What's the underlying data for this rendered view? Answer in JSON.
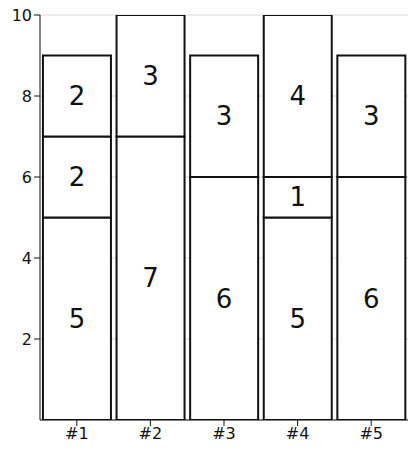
{
  "chart_data": {
    "type": "bar",
    "stacked": true,
    "data_labels": true,
    "grid": true,
    "categories": [
      "#1",
      "#2",
      "#3",
      "#4",
      "#5"
    ],
    "series": [
      {
        "color": "#ffffff",
        "values": [
          5,
          7,
          6,
          5,
          6
        ]
      },
      {
        "color": "#ffffff",
        "values": [
          2,
          3,
          3,
          1,
          3
        ]
      },
      {
        "color": "#ffffff",
        "values": [
          2,
          null,
          null,
          4,
          null
        ]
      }
    ],
    "ylim": [
      0,
      10
    ],
    "yticks": [
      2,
      4,
      6,
      8,
      10
    ]
  }
}
